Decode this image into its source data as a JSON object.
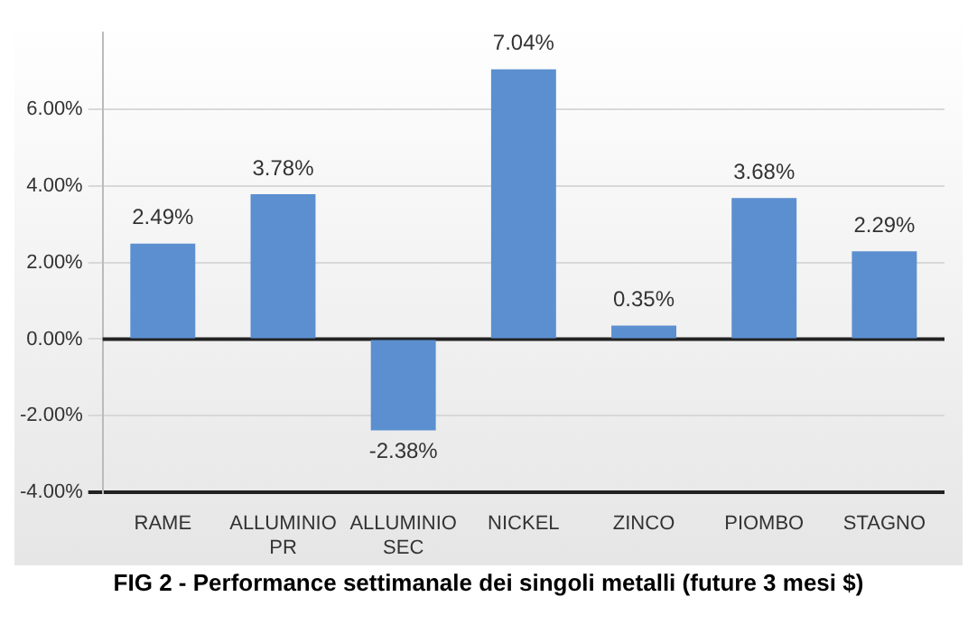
{
  "chart_data": {
    "type": "bar",
    "title": "FIG 2 - Performance settimanale dei singoli metalli (future 3 mesi $)",
    "categories": [
      "RAME",
      "ALLUMINIO PR",
      "ALLUMINIO SEC",
      "NICKEL",
      "ZINCO",
      "PIOMBO",
      "STAGNO"
    ],
    "values": [
      2.49,
      3.78,
      -2.38,
      7.04,
      0.35,
      3.68,
      2.29
    ],
    "value_labels": [
      "2.49%",
      "3.78%",
      "-2.38%",
      "7.04%",
      "0.35%",
      "3.68%",
      "2.29%"
    ],
    "color": "#5b8fd0",
    "ylim": [
      -4,
      8
    ],
    "yticks": [
      {
        "value": -4,
        "label": "-4.00%"
      },
      {
        "value": -2,
        "label": "-2.00%"
      },
      {
        "value": 0,
        "label": "0.00%"
      },
      {
        "value": 2,
        "label": "2.00%"
      },
      {
        "value": 4,
        "label": "4.00%"
      },
      {
        "value": 6,
        "label": "6.00%"
      }
    ],
    "grid": "y"
  }
}
